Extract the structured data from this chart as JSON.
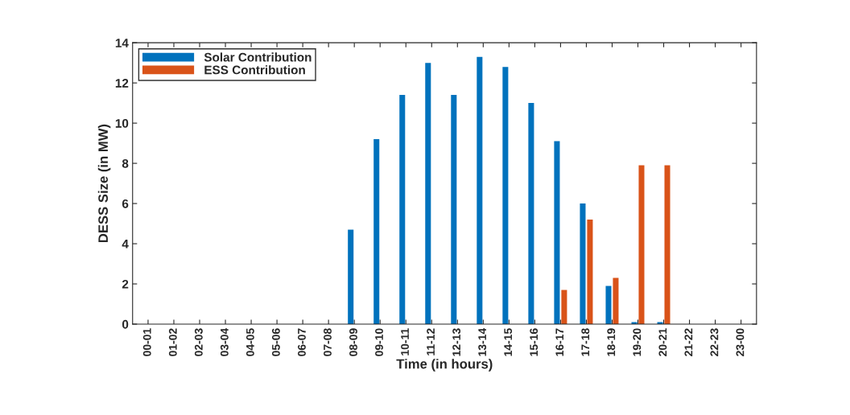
{
  "chart_data": {
    "type": "bar",
    "xlabel": "Time (in hours)",
    "ylabel": "DESS Size (in MW)",
    "categories": [
      "00-01",
      "01-02",
      "02-03",
      "03-04",
      "04-05",
      "05-06",
      "06-07",
      "07-08",
      "08-09",
      "09-10",
      "10-11",
      "11-12",
      "12-13",
      "13-14",
      "14-15",
      "15-16",
      "16-17",
      "17-18",
      "18-19",
      "19-20",
      "20-21",
      "21-22",
      "22-23",
      "23-00"
    ],
    "series": [
      {
        "name": "Solar Contribution",
        "color": "#0072bd",
        "values": [
          null,
          null,
          null,
          null,
          null,
          null,
          null,
          null,
          4.7,
          9.2,
          11.4,
          13.0,
          11.4,
          13.3,
          12.8,
          11.0,
          9.1,
          6.0,
          1.9,
          0.1,
          0.1,
          null,
          null,
          null
        ]
      },
      {
        "name": "ESS Contribution",
        "color": "#d95319",
        "values": [
          null,
          null,
          null,
          null,
          null,
          null,
          null,
          null,
          null,
          null,
          null,
          null,
          null,
          null,
          null,
          null,
          1.7,
          5.2,
          2.3,
          7.9,
          7.9,
          null,
          null,
          null
        ]
      }
    ],
    "ylim": [
      0,
      14
    ],
    "yticks": [
      0,
      2,
      4,
      6,
      8,
      10,
      12,
      14
    ],
    "grid": false,
    "legend": "top left"
  }
}
